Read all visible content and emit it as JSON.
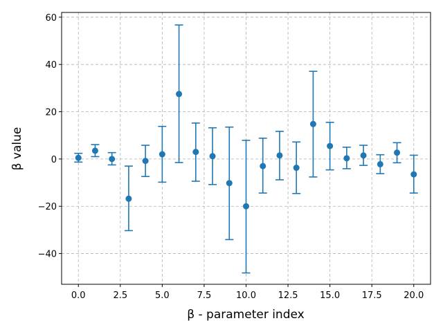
{
  "chart_data": {
    "type": "scatter",
    "xlabel": "β - parameter index",
    "ylabel": "β value",
    "xlim": [
      -1,
      21
    ],
    "ylim": [
      -53,
      62
    ],
    "x_ticks": [
      0,
      2.5,
      5,
      7.5,
      10,
      12.5,
      15,
      17.5,
      20
    ],
    "x_tick_labels": [
      "0.0",
      "2.5",
      "5.0",
      "7.5",
      "10.0",
      "12.5",
      "15.0",
      "17.5",
      "20.0"
    ],
    "y_ticks": [
      -40,
      -20,
      0,
      20,
      40,
      60
    ],
    "y_tick_labels": [
      "−40",
      "−20",
      "0",
      "20",
      "40",
      "60"
    ],
    "grid": true,
    "color": "#1f77b4",
    "series": [
      {
        "x": [
          0,
          1,
          2,
          3,
          4,
          5,
          6,
          7,
          8,
          9,
          10,
          11,
          12,
          13,
          14,
          15,
          16,
          17,
          18,
          19,
          20
        ],
        "y": [
          0.5,
          3.5,
          0,
          -16.8,
          -0.8,
          2,
          27.5,
          3,
          1.2,
          -10.2,
          -20,
          -3,
          1.5,
          -3.7,
          14.8,
          5.5,
          0.3,
          1.5,
          -2.2,
          2.7,
          -6.5
        ],
        "yerr_low": [
          -1.3,
          1,
          -2.5,
          -30.3,
          -7.4,
          -9.8,
          -1.5,
          -9.4,
          -10.8,
          -34.1,
          -48.2,
          -14.4,
          -8.8,
          -14.6,
          -7.6,
          -4.6,
          -4.1,
          -2.7,
          -6.2,
          -1.6,
          -14.4
        ],
        "yerr_high": [
          2.4,
          6.1,
          2.7,
          -3,
          5.8,
          13.8,
          56.7,
          15.2,
          13.2,
          13.5,
          7.9,
          8.8,
          11.7,
          7.2,
          37.1,
          15.5,
          5,
          5.8,
          1.8,
          6.9,
          1.6
        ]
      }
    ]
  }
}
